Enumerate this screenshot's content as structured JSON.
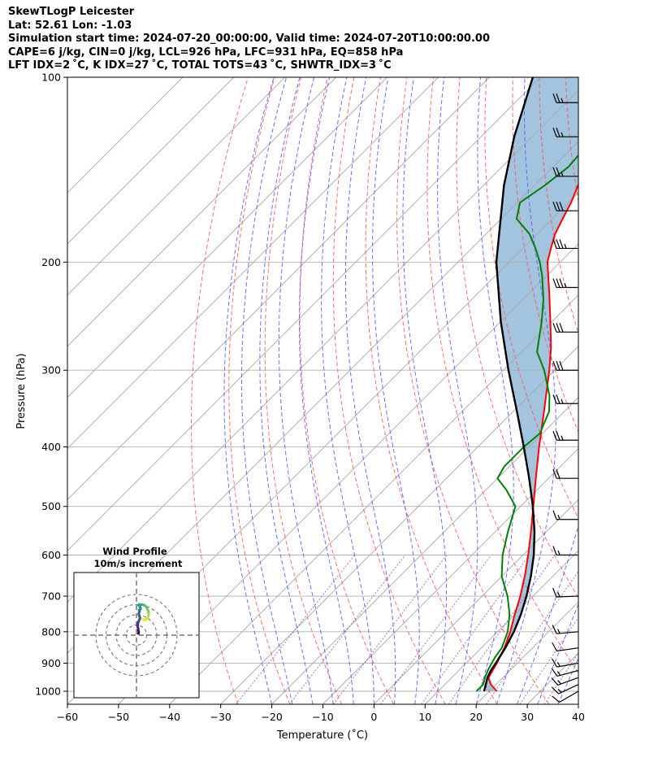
{
  "header": {
    "line1": "SkewTLogP Leicester",
    "line2": "Lat: 52.61   Lon: -1.03",
    "line3": "Simulation start time: 2024-07-20_00:00:00, Valid time: 2024-07-20T10:00:00.00",
    "line4": "CAPE=6 j/kg, CIN=0 j/kg, LCL=926 hPa, LFC=931 hPa, EQ=858 hPa",
    "line5": "LFT IDX=2 ˚C, K IDX=27 ˚C, TOTAL TOTS=43 ˚C, SHWTR_IDX=3 ˚C"
  },
  "chart_data": {
    "type": "line",
    "variant": "skew-T log-P",
    "title": "",
    "xlabel": "Temperature (˚C)",
    "ylabel": "Pressure (hPa)",
    "xlim": [
      -60,
      40
    ],
    "ylim": [
      1050,
      100
    ],
    "y_scale": "log",
    "grid": true,
    "x_ticks": [
      "−60",
      "−50",
      "−40",
      "−30",
      "−20",
      "−10",
      "0",
      "10",
      "20",
      "30",
      "40"
    ],
    "y_ticks": [
      100,
      200,
      300,
      400,
      500,
      600,
      700,
      800,
      900,
      1000
    ],
    "series": [
      {
        "role": "temperature",
        "color": "#ff0000",
        "points": [
          [
            1000,
            21.5
          ],
          [
            975,
            19.0
          ],
          [
            950,
            17.2
          ],
          [
            900,
            16.0
          ],
          [
            850,
            14.5
          ],
          [
            800,
            12.5
          ],
          [
            750,
            10.0
          ],
          [
            700,
            7.5
          ],
          [
            650,
            4.5
          ],
          [
            600,
            1.0
          ],
          [
            550,
            -3.0
          ],
          [
            500,
            -7.5
          ],
          [
            450,
            -12.5
          ],
          [
            400,
            -18.0
          ],
          [
            350,
            -24.0
          ],
          [
            300,
            -31.0
          ],
          [
            275,
            -35.2
          ],
          [
            250,
            -40.3
          ],
          [
            225,
            -46.0
          ],
          [
            200,
            -52.5
          ],
          [
            190,
            -54.5
          ],
          [
            180,
            -56.5
          ],
          [
            170,
            -58.0
          ],
          [
            160,
            -59.5
          ],
          [
            150,
            -61.5
          ],
          [
            140,
            -63.0
          ],
          [
            130,
            -65.0
          ],
          [
            120,
            -68.0
          ],
          [
            110,
            -71.5
          ],
          [
            100,
            -75.0
          ]
        ]
      },
      {
        "role": "dewpoint",
        "color": "#008000",
        "points": [
          [
            1000,
            17.5
          ],
          [
            975,
            17.5
          ],
          [
            950,
            16.5
          ],
          [
            920,
            15.5
          ],
          [
            880,
            14.5
          ],
          [
            850,
            14.0
          ],
          [
            800,
            12.0
          ],
          [
            750,
            9.0
          ],
          [
            700,
            5.0
          ],
          [
            650,
            0.0
          ],
          [
            600,
            -4.0
          ],
          [
            550,
            -7.5
          ],
          [
            500,
            -11.0
          ],
          [
            470,
            -16.0
          ],
          [
            450,
            -20.0
          ],
          [
            430,
            -21.0
          ],
          [
            400,
            -21.0
          ],
          [
            380,
            -20.5
          ],
          [
            350,
            -23.0
          ],
          [
            330,
            -26.0
          ],
          [
            300,
            -32.0
          ],
          [
            280,
            -37.0
          ],
          [
            250,
            -42.0
          ],
          [
            230,
            -46.0
          ],
          [
            210,
            -51.0
          ],
          [
            200,
            -54.0
          ],
          [
            190,
            -57.5
          ],
          [
            180,
            -61.5
          ],
          [
            170,
            -67.0
          ],
          [
            160,
            -69.5
          ],
          [
            150,
            -68.0
          ],
          [
            140,
            -67.0
          ],
          [
            130,
            -67.5
          ],
          [
            120,
            -67.5
          ],
          [
            110,
            -67.0
          ],
          [
            100,
            -67.5
          ]
        ]
      },
      {
        "role": "parcel",
        "color": "#000000",
        "points": [
          [
            1000,
            19.0
          ],
          [
            950,
            17.0
          ],
          [
            926,
            16.3
          ],
          [
            900,
            15.8
          ],
          [
            850,
            14.7
          ],
          [
            800,
            13.2
          ],
          [
            750,
            11.2
          ],
          [
            700,
            8.7
          ],
          [
            650,
            5.7
          ],
          [
            600,
            2.1
          ],
          [
            550,
            -2.3
          ],
          [
            500,
            -7.6
          ],
          [
            450,
            -13.8
          ],
          [
            400,
            -21.0
          ],
          [
            350,
            -29.3
          ],
          [
            300,
            -39.0
          ],
          [
            250,
            -50.0
          ],
          [
            200,
            -62.5
          ],
          [
            150,
            -76.0
          ],
          [
            125,
            -83.5
          ],
          [
            100,
            -91.5
          ]
        ]
      }
    ],
    "cape_fill_color": "#a2c4de",
    "wind_barbs": [
      {
        "p": 1000,
        "speed_kt": 10,
        "dir_deg": 240
      },
      {
        "p": 975,
        "speed_kt": 15,
        "dir_deg": 245
      },
      {
        "p": 950,
        "speed_kt": 15,
        "dir_deg": 250
      },
      {
        "p": 925,
        "speed_kt": 15,
        "dir_deg": 255
      },
      {
        "p": 900,
        "speed_kt": 15,
        "dir_deg": 260
      },
      {
        "p": 850,
        "speed_kt": 10,
        "dir_deg": 262
      },
      {
        "p": 800,
        "speed_kt": 15,
        "dir_deg": 265
      },
      {
        "p": 700,
        "speed_kt": 15,
        "dir_deg": 268
      },
      {
        "p": 600,
        "speed_kt": 15,
        "dir_deg": 270
      },
      {
        "p": 525,
        "speed_kt": 15,
        "dir_deg": 270
      },
      {
        "p": 450,
        "speed_kt": 20,
        "dir_deg": 270
      },
      {
        "p": 390,
        "speed_kt": 25,
        "dir_deg": 270
      },
      {
        "p": 340,
        "speed_kt": 25,
        "dir_deg": 270
      },
      {
        "p": 300,
        "speed_kt": 30,
        "dir_deg": 270
      },
      {
        "p": 260,
        "speed_kt": 30,
        "dir_deg": 270
      },
      {
        "p": 220,
        "speed_kt": 35,
        "dir_deg": 270
      },
      {
        "p": 190,
        "speed_kt": 35,
        "dir_deg": 270
      },
      {
        "p": 165,
        "speed_kt": 30,
        "dir_deg": 270
      },
      {
        "p": 145,
        "speed_kt": 25,
        "dir_deg": 270
      },
      {
        "p": 125,
        "speed_kt": 25,
        "dir_deg": 270
      },
      {
        "p": 110,
        "speed_kt": 25,
        "dir_deg": 270
      }
    ],
    "hodograph": {
      "title_line1": "Wind Profile",
      "title_line2": "10m/s increment",
      "ring_step_ms": 10,
      "rings": 4,
      "points": [
        [
          2.0,
          1.5
        ],
        [
          2.2,
          3.0
        ],
        [
          1.8,
          5.0
        ],
        [
          1.5,
          7.0
        ],
        [
          1.2,
          9.0
        ],
        [
          1.4,
          11.0
        ],
        [
          1.8,
          13.0
        ],
        [
          2.8,
          15.0
        ],
        [
          3.5,
          17.0
        ],
        [
          2.8,
          19.0
        ],
        [
          2.2,
          21.0
        ],
        [
          3.0,
          23.0
        ],
        [
          2.5,
          24.5
        ],
        [
          3.5,
          25.0
        ],
        [
          4.0,
          26.2
        ],
        [
          3.8,
          27.5
        ],
        [
          3.0,
          28.5
        ],
        [
          2.0,
          29.5
        ],
        [
          2.5,
          30.2
        ],
        [
          4.0,
          30.0
        ],
        [
          6.0,
          30.0
        ],
        [
          8.0,
          29.2
        ],
        [
          9.5,
          28.0
        ],
        [
          10.5,
          26.0
        ],
        [
          11.5,
          24.0
        ],
        [
          12.0,
          22.0
        ],
        [
          12.0,
          20.0
        ],
        [
          11.5,
          18.0
        ],
        [
          10.5,
          16.5
        ],
        [
          9.0,
          15.5
        ],
        [
          7.0,
          15.0
        ],
        [
          6.0,
          15.5
        ]
      ]
    },
    "colors": {
      "dry_adiabat": "#ff5555",
      "moist_adiabat": "#5555ff",
      "mixing_ratio": "#9933cc",
      "isotherm": "#a8a8a8"
    }
  }
}
